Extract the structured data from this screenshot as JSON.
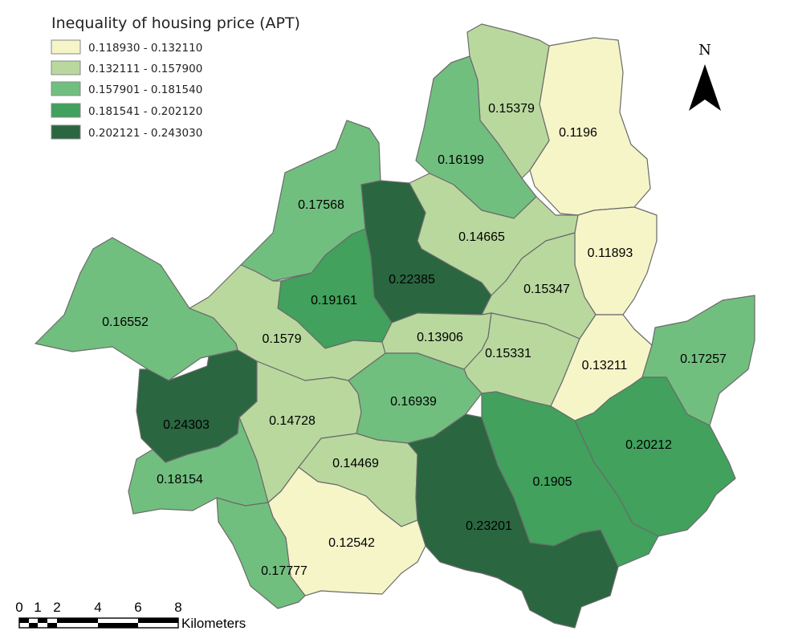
{
  "legend": {
    "title": "Inequality of housing price (APT)",
    "classes": [
      {
        "label": "0.118930 - 0.132110",
        "color": "#f5f5c8"
      },
      {
        "label": "0.132111 - 0.157900",
        "color": "#b9d89e"
      },
      {
        "label": "0.157901 - 0.181540",
        "color": "#71bf7f"
      },
      {
        "label": "0.181541 - 0.202120",
        "color": "#41a15d"
      },
      {
        "label": "0.202121 - 0.243030",
        "color": "#2a6640"
      }
    ]
  },
  "regions": [
    {
      "label": "0.1196",
      "value": 0.1196
    },
    {
      "label": "0.15379",
      "value": 0.15379
    },
    {
      "label": "0.16199",
      "value": 0.16199
    },
    {
      "label": "0.17568",
      "value": 0.17568
    },
    {
      "label": "0.22385",
      "value": 0.22385
    },
    {
      "label": "0.14665",
      "value": 0.14665
    },
    {
      "label": "0.11893",
      "value": 0.11893
    },
    {
      "label": "0.15347",
      "value": 0.15347
    },
    {
      "label": "0.19161",
      "value": 0.19161
    },
    {
      "label": "0.16552",
      "value": 0.16552
    },
    {
      "label": "0.1579",
      "value": 0.1579
    },
    {
      "label": "0.13906",
      "value": 0.13906
    },
    {
      "label": "0.15331",
      "value": 0.15331
    },
    {
      "label": "0.13211",
      "value": 0.13211
    },
    {
      "label": "0.17257",
      "value": 0.17257
    },
    {
      "label": "0.24303",
      "value": 0.24303
    },
    {
      "label": "0.14728",
      "value": 0.14728
    },
    {
      "label": "0.16939",
      "value": 0.16939
    },
    {
      "label": "0.20212",
      "value": 0.20212
    },
    {
      "label": "0.14469",
      "value": 0.14469
    },
    {
      "label": "0.1905",
      "value": 0.1905
    },
    {
      "label": "0.18154",
      "value": 0.18154
    },
    {
      "label": "0.23201",
      "value": 0.23201
    },
    {
      "label": "0.12542",
      "value": 0.12542
    },
    {
      "label": "0.17777",
      "value": 0.17777
    }
  ],
  "north_arrow": {
    "label": "N"
  },
  "scale_bar": {
    "ticks": [
      "0",
      "1",
      "2",
      "4",
      "6",
      "8"
    ],
    "unit": "Kilometers"
  }
}
